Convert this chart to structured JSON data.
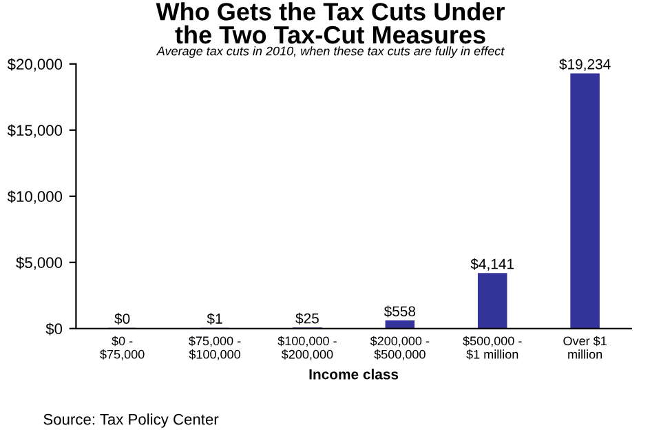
{
  "chart_data": {
    "type": "bar",
    "title": "Who Gets the Tax Cuts Under\nthe Two Tax-Cut Measures",
    "subtitle": "Average tax cuts in 2010, when these tax cuts are fully in effect",
    "xlabel": "Income class",
    "categories": [
      "$0 -\n$75,000",
      "$75,000 -\n$100,000",
      "$100,000 -\n$200,000",
      "$200,000 -\n$500,000",
      "$500,000 -\n$1 million",
      "Over $1\nmillion"
    ],
    "values": [
      0,
      1,
      25,
      558,
      4141,
      19234
    ],
    "value_labels": [
      "$0",
      "$1",
      "$25",
      "$558",
      "$4,141",
      "$19,234"
    ],
    "color": "#333399",
    "ylim": [
      0,
      20000
    ],
    "yticks": [
      {
        "value": 0,
        "label": "$0"
      },
      {
        "value": 5000,
        "label": "$5,000"
      },
      {
        "value": 10000,
        "label": "$10,000"
      },
      {
        "value": 15000,
        "label": "$15,000"
      },
      {
        "value": 20000,
        "label": "$20,000"
      }
    ],
    "grid": false,
    "legend": false,
    "annotations": [
      "Source: Tax Policy Center"
    ]
  }
}
